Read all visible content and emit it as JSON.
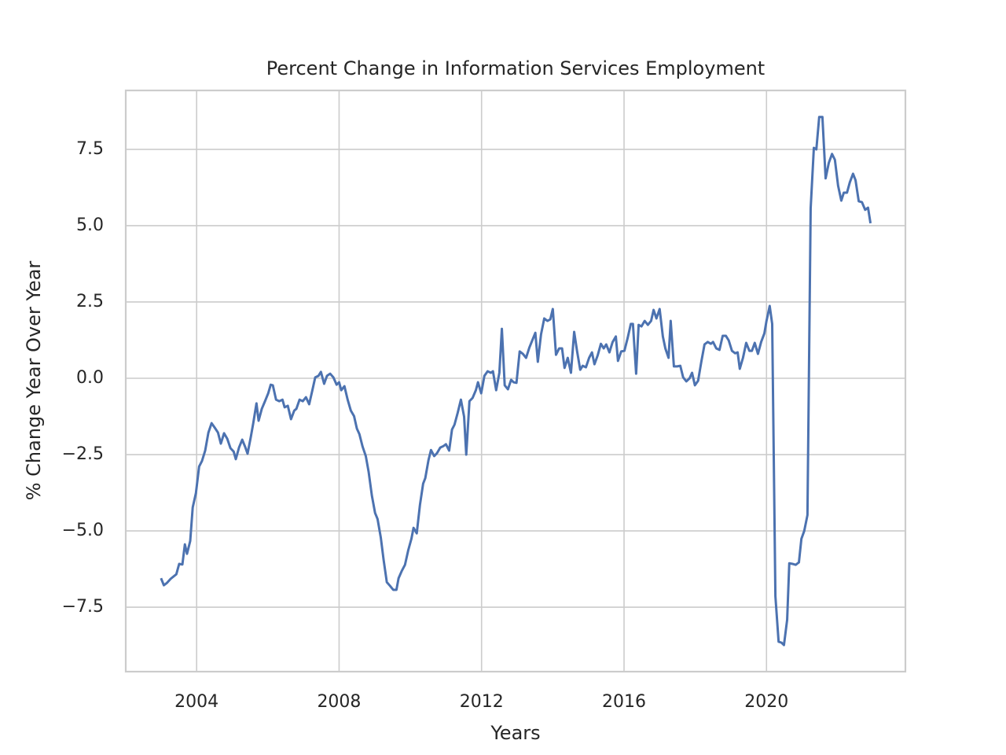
{
  "chart_data": {
    "type": "line",
    "title": "Percent Change in Information Services Employment",
    "x_label": "Years",
    "y_label": "% Change Year Over Year",
    "xlim": [
      2002.01,
      2023.9
    ],
    "ylim": [
      -9.61,
      9.43
    ],
    "xticks": [
      2004,
      2008,
      2012,
      2016,
      2020
    ],
    "yticks": [
      {
        "value": -7.5,
        "label": "−7.5"
      },
      {
        "value": -5.0,
        "label": "−5.0"
      },
      {
        "value": -2.5,
        "label": "−2.5"
      },
      {
        "value": 0,
        "label": "0.0"
      },
      {
        "value": 2.5,
        "label": "2.5"
      },
      {
        "value": 5.0,
        "label": "5.0"
      },
      {
        "value": 7.5,
        "label": "7.5"
      }
    ],
    "grid": true,
    "x": [
      2003.0,
      2003.08,
      2003.17,
      2003.27,
      2003.43,
      2003.51,
      2003.6,
      2003.67,
      2003.73,
      2003.82,
      2003.89,
      2003.98,
      2004.07,
      2004.15,
      2004.24,
      2004.33,
      2004.42,
      2004.51,
      2004.6,
      2004.68,
      2004.77,
      2004.86,
      2004.95,
      2005.04,
      2005.1,
      2005.19,
      2005.28,
      2005.37,
      2005.43,
      2005.52,
      2005.59,
      2005.68,
      2005.74,
      2005.83,
      2005.92,
      2006.01,
      2006.08,
      2006.14,
      2006.23,
      2006.32,
      2006.41,
      2006.47,
      2006.56,
      2006.65,
      2006.74,
      2006.8,
      2006.89,
      2006.98,
      2007.07,
      2007.16,
      2007.25,
      2007.33,
      2007.42,
      2007.49,
      2007.58,
      2007.66,
      2007.75,
      2007.84,
      2007.93,
      2008.0,
      2008.06,
      2008.15,
      2008.24,
      2008.33,
      2008.42,
      2008.5,
      2008.57,
      2008.66,
      2008.75,
      2008.83,
      2008.92,
      2009.01,
      2009.08,
      2009.17,
      2009.25,
      2009.34,
      2009.43,
      2009.52,
      2009.61,
      2009.67,
      2009.76,
      2009.85,
      2009.94,
      2010.03,
      2010.09,
      2010.18,
      2010.27,
      2010.36,
      2010.42,
      2010.51,
      2010.58,
      2010.67,
      2010.75,
      2010.84,
      2010.93,
      2011.0,
      2011.09,
      2011.17,
      2011.24,
      2011.33,
      2011.42,
      2011.51,
      2011.57,
      2011.66,
      2011.75,
      2011.84,
      2011.9,
      2011.99,
      2012.08,
      2012.17,
      2012.26,
      2012.32,
      2012.41,
      2012.5,
      2012.57,
      2012.65,
      2012.74,
      2012.83,
      2012.9,
      2012.98,
      2013.07,
      2013.16,
      2013.25,
      2013.34,
      2013.43,
      2013.51,
      2013.58,
      2013.67,
      2013.76,
      2013.85,
      2013.93,
      2014.0,
      2014.09,
      2014.18,
      2014.26,
      2014.33,
      2014.42,
      2014.51,
      2014.6,
      2014.68,
      2014.77,
      2014.84,
      2014.93,
      2015.02,
      2015.1,
      2015.17,
      2015.26,
      2015.35,
      2015.43,
      2015.5,
      2015.59,
      2015.68,
      2015.77,
      2015.83,
      2015.92,
      2016.01,
      2016.1,
      2016.19,
      2016.25,
      2016.34,
      2016.41,
      2016.49,
      2016.58,
      2016.67,
      2016.76,
      2016.83,
      2016.91,
      2017.0,
      2017.09,
      2017.16,
      2017.25,
      2017.31,
      2017.4,
      2017.49,
      2017.58,
      2017.66,
      2017.75,
      2017.84,
      2017.91,
      2017.99,
      2018.08,
      2018.17,
      2018.26,
      2018.35,
      2018.44,
      2018.5,
      2018.59,
      2018.68,
      2018.77,
      2018.86,
      2018.94,
      2019.03,
      2019.12,
      2019.19,
      2019.25,
      2019.34,
      2019.43,
      2019.52,
      2019.59,
      2019.67,
      2019.76,
      2019.85,
      2019.94,
      2020.0,
      2020.09,
      2020.16,
      2020.25,
      2020.34,
      2020.42,
      2020.49,
      2020.58,
      2020.64,
      2020.73,
      2020.82,
      2020.91,
      2020.98,
      2021.06,
      2021.15,
      2021.24,
      2021.33,
      2021.4,
      2021.48,
      2021.57,
      2021.66,
      2021.75,
      2021.84,
      2021.92,
      2022.01,
      2022.1,
      2022.17,
      2022.26,
      2022.34,
      2022.43,
      2022.5,
      2022.59,
      2022.68,
      2022.77,
      2022.85,
      2022.92
    ],
    "series": [
      {
        "name": "Information Services",
        "color": "#4c72b0",
        "values": [
          -6.55,
          -6.78,
          -6.7,
          -6.57,
          -6.42,
          -6.08,
          -6.1,
          -5.44,
          -5.75,
          -5.33,
          -4.23,
          -3.76,
          -2.89,
          -2.71,
          -2.37,
          -1.78,
          -1.47,
          -1.62,
          -1.78,
          -2.14,
          -1.8,
          -1.98,
          -2.29,
          -2.4,
          -2.65,
          -2.27,
          -2.01,
          -2.27,
          -2.47,
          -1.93,
          -1.47,
          -0.82,
          -1.39,
          -1.0,
          -0.75,
          -0.49,
          -0.21,
          -0.23,
          -0.7,
          -0.75,
          -0.7,
          -0.95,
          -0.9,
          -1.34,
          -1.06,
          -1.0,
          -0.7,
          -0.75,
          -0.62,
          -0.85,
          -0.39,
          0.03,
          0.08,
          0.21,
          -0.18,
          0.08,
          0.15,
          0.03,
          -0.21,
          -0.13,
          -0.39,
          -0.26,
          -0.7,
          -1.06,
          -1.24,
          -1.65,
          -1.83,
          -2.24,
          -2.55,
          -3.07,
          -3.84,
          -4.41,
          -4.61,
          -5.21,
          -5.95,
          -6.68,
          -6.8,
          -6.93,
          -6.93,
          -6.55,
          -6.31,
          -6.11,
          -5.64,
          -5.26,
          -4.9,
          -5.08,
          -4.15,
          -3.45,
          -3.27,
          -2.68,
          -2.35,
          -2.55,
          -2.45,
          -2.27,
          -2.22,
          -2.16,
          -2.37,
          -1.68,
          -1.52,
          -1.13,
          -0.7,
          -1.26,
          -2.5,
          -0.75,
          -0.64,
          -0.39,
          -0.13,
          -0.49,
          0.08,
          0.23,
          0.18,
          0.23,
          -0.39,
          0.18,
          1.62,
          -0.23,
          -0.36,
          -0.05,
          -0.13,
          -0.15,
          0.88,
          0.8,
          0.67,
          1.0,
          1.26,
          1.49,
          0.54,
          1.44,
          1.96,
          1.88,
          1.93,
          2.27,
          0.77,
          0.98,
          0.98,
          0.34,
          0.67,
          0.18,
          1.52,
          0.9,
          0.28,
          0.41,
          0.36,
          0.67,
          0.85,
          0.46,
          0.75,
          1.13,
          0.98,
          1.11,
          0.85,
          1.19,
          1.37,
          0.57,
          0.88,
          0.9,
          1.31,
          1.78,
          1.78,
          0.15,
          1.75,
          1.7,
          1.88,
          1.75,
          1.88,
          2.24,
          1.96,
          2.27,
          1.37,
          0.98,
          0.67,
          1.88,
          0.39,
          0.39,
          0.41,
          0.03,
          -0.1,
          0.0,
          0.18,
          -0.23,
          -0.08,
          0.54,
          1.11,
          1.19,
          1.13,
          1.19,
          0.98,
          0.93,
          1.39,
          1.39,
          1.24,
          0.9,
          0.82,
          0.85,
          0.31,
          0.67,
          1.16,
          0.9,
          0.9,
          1.16,
          0.8,
          1.19,
          1.47,
          1.88,
          2.37,
          1.78,
          -7.14,
          -8.63,
          -8.66,
          -8.74,
          -7.91,
          -6.06,
          -6.08,
          -6.11,
          -6.03,
          -5.26,
          -5.0,
          -4.48,
          5.57,
          7.55,
          7.5,
          8.56,
          8.56,
          6.55,
          7.06,
          7.35,
          7.16,
          6.31,
          5.82,
          6.08,
          6.08,
          6.42,
          6.7,
          6.49,
          5.8,
          5.77,
          5.52,
          5.59,
          5.08
        ]
      }
    ]
  }
}
